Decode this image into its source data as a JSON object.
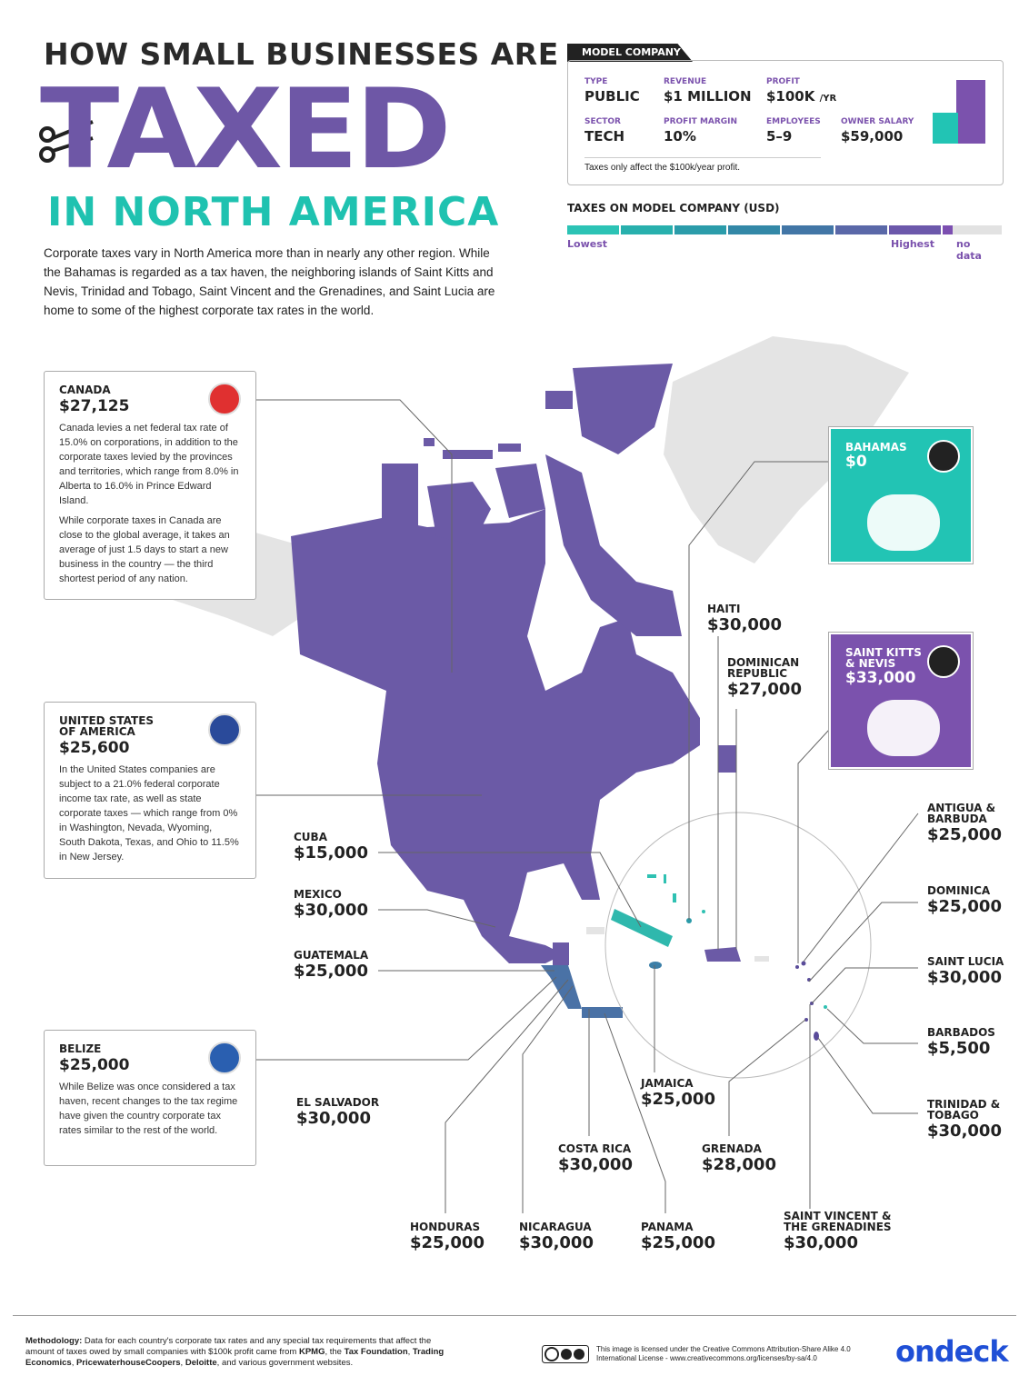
{
  "header": {
    "kicker": "HOW SMALL BUSINESSES ARE",
    "title": "TAXED",
    "subtitle": "IN NORTH AMERICA",
    "intro": "Corporate taxes vary in North America more than in nearly any other region. While the Bahamas is regarded as a tax haven, the neighboring islands of Saint Kitts and Nevis, Trinidad and Tobago, Saint Vincent and the Grenadines, and Saint Lucia are home to some of the highest corporate tax rates in the world."
  },
  "model_company": {
    "label": "MODEL COMPANY",
    "fields": [
      {
        "label": "TYPE",
        "value": "PUBLIC"
      },
      {
        "label": "REVENUE",
        "value": "$1 MILLION"
      },
      {
        "label": "PROFIT",
        "value": "$100K",
        "unit": "/YR"
      },
      {
        "label": "SECTOR",
        "value": "TECH"
      },
      {
        "label": "PROFIT MARGIN",
        "value": "10%"
      },
      {
        "label": "EMPLOYEES",
        "value": "5–9"
      },
      {
        "label": "OWNER SALARY",
        "value": "$59,000"
      }
    ],
    "note": "Taxes only affect the $100k/year profit."
  },
  "legend": {
    "title": "TAXES ON MODEL COMPANY (USD)",
    "low": "Lowest",
    "high": "Highest",
    "no_data": "no data",
    "colors": [
      "#2cc3b5",
      "#28b0ad",
      "#2b9caa",
      "#3388a7",
      "#4276a6",
      "#5a68a8",
      "#6c58ab",
      "#7c4fb1"
    ],
    "no_data_color": "#e2e2e2"
  },
  "countries": [
    {
      "name": "CANADA",
      "tax": "$27,125",
      "description": [
        "Canada levies a net federal tax rate of 15.0% on corporations, in addition to the corporate taxes levied by the provinces and territories, which range from 8.0% in Alberta to 16.0% in Prince Edward Island.",
        "While corporate taxes in Canada are close to the global average, it takes an average of just 1.5 days to start a new business in the country — the third shortest period of any nation."
      ]
    },
    {
      "name": "UNITED STATES OF AMERICA",
      "tax": "$25,600",
      "description": [
        "In the United States companies are subject to a 21.0% federal corporate income tax rate, as well as state corporate taxes — which range from 0% in Washington, Nevada, Wyoming, South Dakota, Texas, and Ohio to 11.5% in New Jersey."
      ]
    },
    {
      "name": "BELIZE",
      "tax": "$25,000",
      "description": [
        "While Belize was once considered a tax haven, recent changes to the tax regime have given the country corporate tax rates similar to the rest of the world."
      ]
    },
    {
      "name": "BAHAMAS",
      "tax": "$0",
      "color": "#22c4b4"
    },
    {
      "name": "SAINT KITTS & NEVIS",
      "tax": "$33,000",
      "color": "#7b52ad"
    },
    {
      "name": "HAITI",
      "tax": "$30,000"
    },
    {
      "name": "DOMINICAN REPUBLIC",
      "tax": "$27,000"
    },
    {
      "name": "CUBA",
      "tax": "$15,000"
    },
    {
      "name": "MEXICO",
      "tax": "$30,000"
    },
    {
      "name": "GUATEMALA",
      "tax": "$25,000"
    },
    {
      "name": "EL SALVADOR",
      "tax": "$30,000"
    },
    {
      "name": "HONDURAS",
      "tax": "$25,000"
    },
    {
      "name": "NICARAGUA",
      "tax": "$30,000"
    },
    {
      "name": "COSTA RICA",
      "tax": "$30,000"
    },
    {
      "name": "PANAMA",
      "tax": "$25,000"
    },
    {
      "name": "JAMAICA",
      "tax": "$25,000"
    },
    {
      "name": "GRENADA",
      "tax": "$28,000"
    },
    {
      "name": "SAINT VINCENT & THE GRENADINES",
      "tax": "$30,000"
    },
    {
      "name": "ANTIGUA & BARBUDA",
      "tax": "$25,000"
    },
    {
      "name": "DOMINICA",
      "tax": "$25,000"
    },
    {
      "name": "SAINT LUCIA",
      "tax": "$30,000"
    },
    {
      "name": "BARBADOS",
      "tax": "$5,500"
    },
    {
      "name": "TRINIDAD & TOBAGO",
      "tax": "$30,000"
    }
  ],
  "methodology": {
    "label": "Methodology:",
    "parts": [
      {
        "text": "Data for each country's corporate tax rates and any special tax requirements that affect the amount of taxes owed by small companies with $100k profit came from ",
        "bold": false
      },
      {
        "text": "KPMG",
        "bold": true
      },
      {
        "text": ", the ",
        "bold": false
      },
      {
        "text": "Tax Foundation",
        "bold": true
      },
      {
        "text": ", ",
        "bold": false
      },
      {
        "text": "Trading Economics",
        "bold": true
      },
      {
        "text": ", ",
        "bold": false
      },
      {
        "text": "PricewaterhouseCoopers",
        "bold": true
      },
      {
        "text": ", ",
        "bold": false
      },
      {
        "text": "Deloitte",
        "bold": true
      },
      {
        "text": ", and various government websites.",
        "bold": false
      }
    ]
  },
  "license": "This image is licensed under the Creative Commons Attribution-Share Alike 4.0  International License - www.creativecommons.org/licenses/by-sa/4.0",
  "brand": "ondeck"
}
